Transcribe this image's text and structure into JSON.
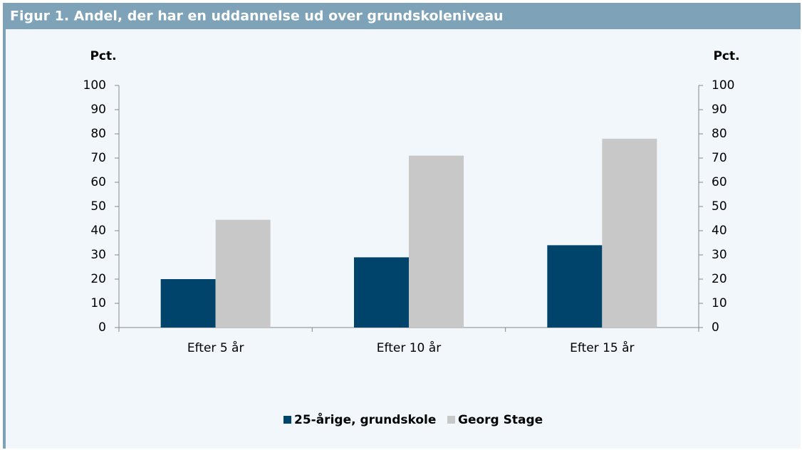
{
  "chart_data": {
    "type": "bar",
    "title": "Figur 1. Andel, der har en uddannelse ud over grundskoleniveau",
    "y_label": "Pct.",
    "y2_label": "Pct.",
    "categories": [
      "Efter 5 år",
      "Efter 10 år",
      "Efter 15 år"
    ],
    "series": [
      {
        "name": "25-årige, grundskole",
        "color": "#00436b",
        "values": [
          20,
          29,
          34
        ]
      },
      {
        "name": "Georg Stage",
        "color": "#c8c8c8",
        "values": [
          44.5,
          71,
          78
        ]
      }
    ],
    "ylim": [
      0,
      100
    ],
    "yticks": [
      0,
      10,
      20,
      30,
      40,
      50,
      60,
      70,
      80,
      90,
      100
    ],
    "y2lim": [
      0,
      100
    ],
    "y2ticks": [
      0,
      10,
      20,
      30,
      40,
      50,
      60,
      70,
      80,
      90,
      100
    ],
    "grid": false,
    "legend": "bottom"
  }
}
